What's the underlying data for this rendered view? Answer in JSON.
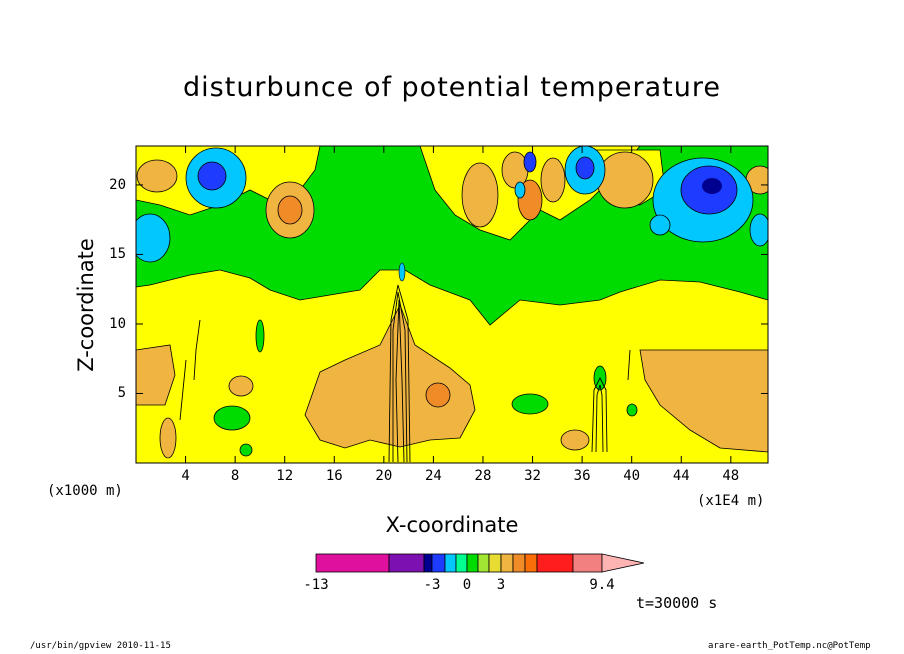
{
  "title": "disturbunce of potential temperature",
  "chart_data": {
    "type": "heatmap",
    "title": "disturbunce of potential temperature",
    "xlabel": "X-coordinate",
    "ylabel": "Z-coordinate",
    "x_scale_note": "(x1E4 m)",
    "y_scale_note": "(x1000 m)",
    "xlim": [
      0,
      51
    ],
    "ylim": [
      0,
      22.8
    ],
    "x_ticks": [
      "4",
      "8",
      "12",
      "16",
      "20",
      "24",
      "28",
      "32",
      "36",
      "40",
      "44",
      "48"
    ],
    "y_ticks": [
      "5",
      "10",
      "15",
      "20"
    ],
    "colorbar": {
      "tick_labels": [
        "-13",
        "-3",
        "0",
        "3",
        "9.4"
      ],
      "colors": [
        "#e0109e",
        "#7d10b0",
        "#000090",
        "#1e3cff",
        "#00c8ff",
        "#00ff90",
        "#00dc00",
        "#a0e632",
        "#e6dc32",
        "#f0b440",
        "#f08c28",
        "#fa6e0a",
        "#ff1e1e",
        "#f28080",
        "#ffb4b4"
      ]
    },
    "time_label": "t=30000 s"
  },
  "footer": {
    "left": "/usr/bin/gpview   2010-11-15",
    "right": "arare-earth_PotTemp.nc@PotTemp"
  }
}
